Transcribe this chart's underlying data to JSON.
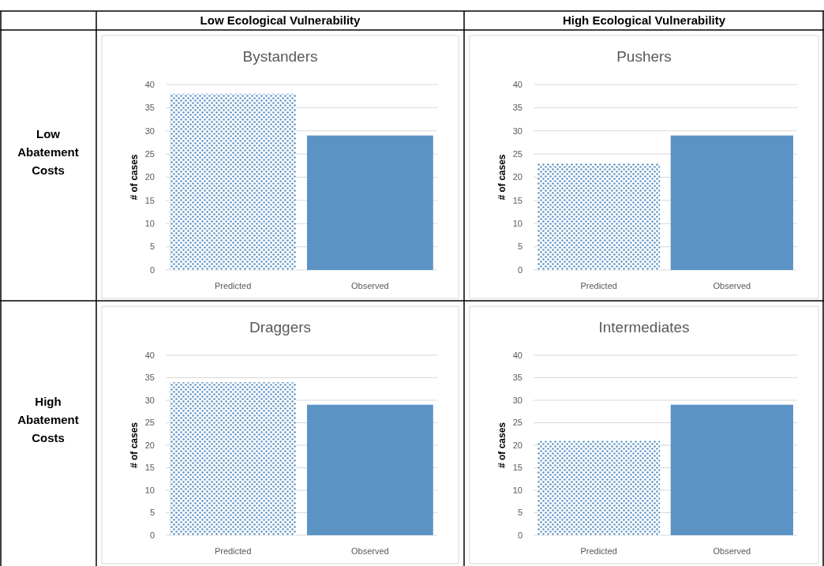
{
  "chart_data": [
    {
      "type": "bar",
      "title": "Bystanders",
      "categories": [
        "Predicted",
        "Observed"
      ],
      "values": [
        38,
        29
      ],
      "colors": [
        "#5b93c5",
        "#5b93c5"
      ],
      "ylabel": "# of cases",
      "ylim": [
        0,
        40
      ],
      "yticks": [
        0,
        5,
        10,
        15,
        20,
        25,
        30,
        35,
        40
      ],
      "grid": "y"
    },
    {
      "type": "bar",
      "title": "Pushers",
      "categories": [
        "Predicted",
        "Observed"
      ],
      "values": [
        23,
        29
      ],
      "colors": [
        "#5b93c5",
        "#5b93c5"
      ],
      "ylabel": "# of cases",
      "ylim": [
        0,
        40
      ],
      "yticks": [
        0,
        5,
        10,
        15,
        20,
        25,
        30,
        35,
        40
      ],
      "grid": "y"
    },
    {
      "type": "bar",
      "title": "Draggers",
      "categories": [
        "Predicted",
        "Observed"
      ],
      "values": [
        34,
        29
      ],
      "colors": [
        "#5b93c5",
        "#5b93c5"
      ],
      "ylabel": "# of cases",
      "ylim": [
        0,
        40
      ],
      "yticks": [
        0,
        5,
        10,
        15,
        20,
        25,
        30,
        35,
        40
      ],
      "grid": "y"
    },
    {
      "type": "bar",
      "title": "Intermediates",
      "categories": [
        "Predicted",
        "Observed"
      ],
      "values": [
        21,
        29
      ],
      "colors": [
        "#5b93c5",
        "#5b93c5"
      ],
      "ylabel": "# of cases",
      "ylim": [
        0,
        40
      ],
      "yticks": [
        0,
        5,
        10,
        15,
        20,
        25,
        30,
        35,
        40
      ],
      "grid": "y"
    },
    {
      "type": "other",
      "annotations": [
        "Low Ecological Vulnerability",
        "High Ecological Vulnerability",
        "Low Abatement Costs",
        "High Abatement Costs"
      ]
    }
  ]
}
